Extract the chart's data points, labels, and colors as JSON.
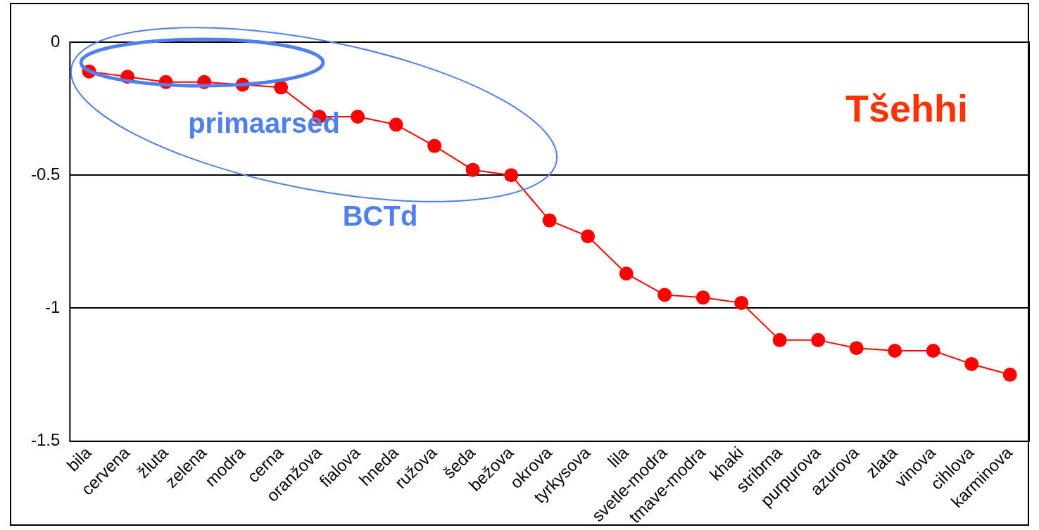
{
  "chart_data": {
    "type": "line",
    "title": "Tšehhi",
    "categories": [
      "bila",
      "cervena",
      "žluta",
      "zelena",
      "modra",
      "cerna",
      "oranžova",
      "fialova",
      "hneda",
      "ružova",
      "šeda",
      "bežova",
      "okrova",
      "tyrkysova",
      "lila",
      "svetle-modra",
      "tmave-modra",
      "khaki",
      "stribrna",
      "purpurova",
      "azurova",
      "zlata",
      "vinova",
      "cihlova",
      "karminova"
    ],
    "series": [
      {
        "color": "#ff0000",
        "values": [
          -0.11,
          -0.13,
          -0.15,
          -0.15,
          -0.16,
          -0.17,
          -0.28,
          -0.28,
          -0.31,
          -0.39,
          -0.48,
          -0.5,
          -0.67,
          -0.73,
          -0.87,
          -0.95,
          -0.96,
          -0.98,
          -1.12,
          -1.12,
          -1.15,
          -1.16,
          -1.16,
          -1.21,
          -1.25
        ]
      }
    ],
    "ylim": [
      -1.5,
      0
    ],
    "yticks": [
      -1.5,
      -1,
      -0.5,
      0
    ],
    "grid": "y",
    "legend": false,
    "marker": "circle",
    "line_style": "solid",
    "annotations": [
      "primaarsed",
      "BCTd"
    ]
  }
}
